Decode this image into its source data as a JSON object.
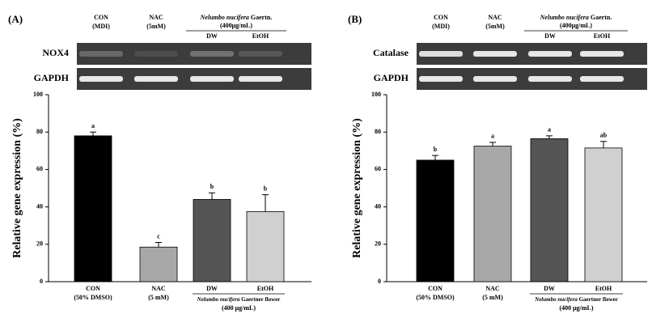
{
  "chart_data": [
    {
      "type": "bar",
      "panel": "(A)",
      "ylabel": "Relative gene expression (%)",
      "gel": {
        "lanes": [
          {
            "name": "CON",
            "sub": "(MDI)"
          },
          {
            "name": "NAC",
            "sub": "(5mM)"
          }
        ],
        "group_species": "Nelumbo nucifera",
        "group_author": "Gaertn.",
        "group_sub": "(400μg/mL)",
        "group_lanes": [
          "DW",
          "EtOH"
        ],
        "rows": [
          "NOX4",
          "GAPDH"
        ]
      },
      "categories": [
        "CON",
        "NAC",
        "DW",
        "EtOH"
      ],
      "sublabels": [
        "(50% DMSO)",
        "(5 mM)"
      ],
      "group_species": "Nelumbo nucifera",
      "group_rest": "Gaertner flower",
      "group_sub": "(400 μg/mL)",
      "values": [
        78,
        18.5,
        44,
        37.5
      ],
      "errors": [
        2,
        2.5,
        3.5,
        9
      ],
      "annotations": [
        "a",
        "c",
        "b",
        "b"
      ],
      "colors": [
        "#000000",
        "#a8a8a8",
        "#555555",
        "#d0d0d0"
      ],
      "ylim": [
        0,
        100
      ],
      "yticks": [
        0,
        20,
        40,
        60,
        80,
        100
      ]
    },
    {
      "type": "bar",
      "panel": "(B)",
      "ylabel": "Relative gene expression (%)",
      "gel": {
        "lanes": [
          {
            "name": "CON",
            "sub": "(MDI)"
          },
          {
            "name": "NAC",
            "sub": "(5mM)"
          }
        ],
        "group_species": "Nelumbo nucifera",
        "group_author": "Gaertn.",
        "group_sub": "(400μg/mL)",
        "group_lanes": [
          "DW",
          "EtOH"
        ],
        "rows": [
          "Catalase",
          "GAPDH"
        ]
      },
      "categories": [
        "CON",
        "NAC",
        "DW",
        "EtOH"
      ],
      "sublabels": [
        "(50% DMSO)",
        "(5 mM)"
      ],
      "group_species": "Nelumbo nucifera",
      "group_rest": "Gaertner flower",
      "group_sub": "(400 μg/mL)",
      "values": [
        65,
        72.5,
        76.5,
        71.5
      ],
      "errors": [
        2.5,
        2,
        1.5,
        3.5
      ],
      "annotations": [
        "b",
        "a",
        "a",
        "ab"
      ],
      "colors": [
        "#000000",
        "#a8a8a8",
        "#555555",
        "#d0d0d0"
      ],
      "ylim": [
        0,
        100
      ],
      "yticks": [
        0,
        20,
        40,
        60,
        80,
        100
      ]
    }
  ]
}
